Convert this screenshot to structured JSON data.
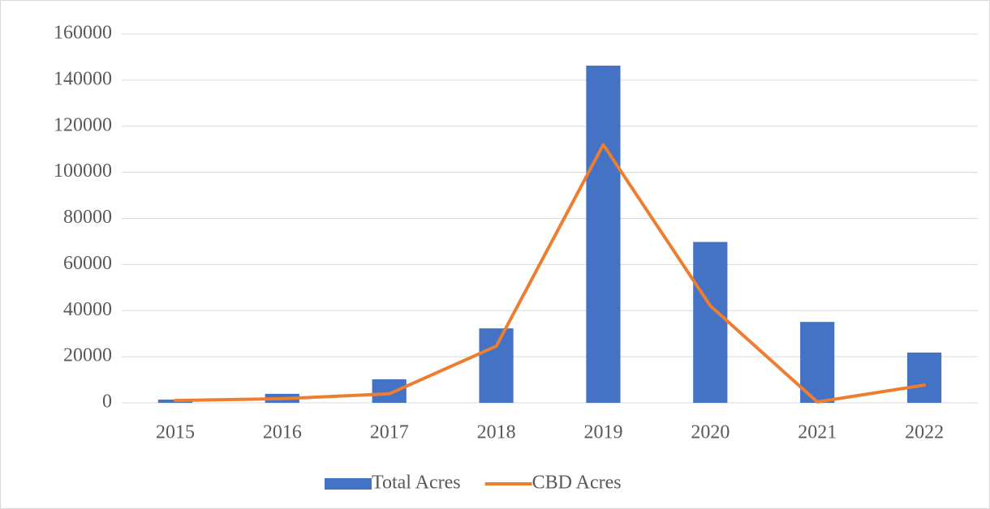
{
  "chart_data": {
    "type": "bar_line",
    "categories": [
      "2015",
      "2016",
      "2017",
      "2018",
      "2019",
      "2020",
      "2021",
      "2022"
    ],
    "series": [
      {
        "name": "Total Acres",
        "type": "bar",
        "color": "#4472c4",
        "values": [
          1400,
          3900,
          10200,
          32300,
          146300,
          69800,
          35100,
          21800
        ]
      },
      {
        "name": "CBD Acres",
        "type": "line",
        "color": "#ed7d31",
        "values": [
          1000,
          1800,
          3900,
          24600,
          112000,
          42100,
          400,
          7700
        ]
      }
    ],
    "ylim": [
      0,
      160000
    ],
    "yticks": [
      0,
      20000,
      40000,
      60000,
      80000,
      100000,
      120000,
      140000,
      160000
    ],
    "grid": true,
    "legend": "bottom"
  }
}
